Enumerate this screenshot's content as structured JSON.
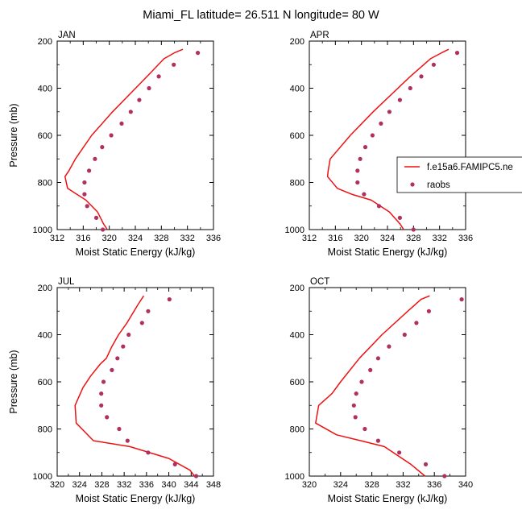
{
  "figure": {
    "title": "Miami_FL  latitude= 26.511 N longitude= 80 W"
  },
  "legend": {
    "model_label": "f.e15a6.FAMIPC5.ne",
    "obs_label": "raobs"
  },
  "colors": {
    "model_line": "#ee1111",
    "obs_marker": "#b03060",
    "axis": "#000000"
  },
  "chart_data": [
    {
      "type": "line",
      "panel": "JAN",
      "xlabel": "Moist Static Energy (kJ/kg)",
      "ylabel": "Pressure (mb)",
      "xlim": [
        312,
        336
      ],
      "ylim": [
        200,
        1000
      ],
      "y_inverted": true,
      "xticks": [
        312,
        316,
        320,
        324,
        328,
        332,
        336
      ],
      "xticks_minor": [
        314,
        318,
        322,
        326,
        330,
        334
      ],
      "yticks": [
        200,
        400,
        600,
        800,
        1000
      ],
      "series": [
        {
          "name": "f.e15a6.FAMIPC5.ne",
          "kind": "line",
          "points": [
            [
              331.3,
              235
            ],
            [
              330.0,
              250
            ],
            [
              328.4,
              275
            ],
            [
              325.8,
              350
            ],
            [
              320.5,
              500
            ],
            [
              317.3,
              600
            ],
            [
              314.8,
              700
            ],
            [
              313.8,
              750
            ],
            [
              313.2,
              775
            ],
            [
              313.6,
              825
            ],
            [
              315.0,
              850
            ],
            [
              316.4,
              875
            ],
            [
              318.2,
              925
            ],
            [
              319.1,
              975
            ],
            [
              319.7,
              1000
            ]
          ]
        },
        {
          "name": "raobs",
          "kind": "scatter",
          "points": [
            [
              333.6,
              250
            ],
            [
              329.9,
              300
            ],
            [
              327.6,
              350
            ],
            [
              326.1,
              400
            ],
            [
              324.6,
              450
            ],
            [
              323.3,
              500
            ],
            [
              321.9,
              550
            ],
            [
              320.3,
              600
            ],
            [
              318.9,
              650
            ],
            [
              317.8,
              700
            ],
            [
              316.9,
              750
            ],
            [
              316.2,
              800
            ],
            [
              316.2,
              850
            ],
            [
              316.6,
              900
            ],
            [
              318.0,
              950
            ],
            [
              319.0,
              1000
            ]
          ]
        }
      ]
    },
    {
      "type": "line",
      "panel": "APR",
      "xlabel": "Moist Static Energy (kJ/kg)",
      "ylabel": "",
      "xlim": [
        312,
        336
      ],
      "ylim": [
        200,
        1000
      ],
      "y_inverted": true,
      "xticks": [
        312,
        316,
        320,
        324,
        328,
        332,
        336
      ],
      "xticks_minor": [
        314,
        318,
        322,
        326,
        330,
        334
      ],
      "yticks": [
        200,
        400,
        600,
        800,
        1000
      ],
      "series": [
        {
          "name": "f.e15a6.FAMIPC5.ne",
          "kind": "line",
          "points": [
            [
              333.4,
              235
            ],
            [
              332.3,
              250
            ],
            [
              330.6,
              275
            ],
            [
              327.5,
              350
            ],
            [
              321.8,
              500
            ],
            [
              318.3,
              600
            ],
            [
              315.2,
              700
            ],
            [
              314.9,
              750
            ],
            [
              314.8,
              775
            ],
            [
              316.3,
              825
            ],
            [
              318.5,
              850
            ],
            [
              321.5,
              875
            ],
            [
              324.3,
              925
            ],
            [
              325.9,
              975
            ],
            [
              326.5,
              1000
            ]
          ]
        },
        {
          "name": "raobs",
          "kind": "scatter",
          "points": [
            [
              334.7,
              250
            ],
            [
              331.1,
              300
            ],
            [
              329.2,
              350
            ],
            [
              327.5,
              400
            ],
            [
              325.9,
              450
            ],
            [
              324.3,
              500
            ],
            [
              323.0,
              550
            ],
            [
              321.7,
              600
            ],
            [
              320.6,
              650
            ],
            [
              319.8,
              700
            ],
            [
              319.4,
              750
            ],
            [
              319.4,
              800
            ],
            [
              320.4,
              850
            ],
            [
              322.7,
              900
            ],
            [
              325.9,
              950
            ],
            [
              328.0,
              1000
            ]
          ]
        }
      ]
    },
    {
      "type": "line",
      "panel": "JUL",
      "xlabel": "Moist Static Energy (kJ/kg)",
      "ylabel": "Pressure (mb)",
      "xlim": [
        320,
        348
      ],
      "ylim": [
        200,
        1000
      ],
      "y_inverted": true,
      "xticks": [
        320,
        324,
        328,
        332,
        336,
        340,
        344,
        348
      ],
      "xticks_minor": [
        322,
        326,
        330,
        334,
        338,
        342,
        346
      ],
      "yticks": [
        200,
        400,
        600,
        800,
        1000
      ],
      "series": [
        {
          "name": "f.e15a6.FAMIPC5.ne",
          "kind": "line",
          "points": [
            [
              335.5,
              235
            ],
            [
              334.4,
              275
            ],
            [
              332.5,
              350
            ],
            [
              331.0,
              400
            ],
            [
              329.8,
              450
            ],
            [
              328.8,
              500
            ],
            [
              327.7,
              525
            ],
            [
              326.0,
              575
            ],
            [
              324.6,
              625
            ],
            [
              323.2,
              700
            ],
            [
              323.4,
              775
            ],
            [
              326.5,
              850
            ],
            [
              333.0,
              875
            ],
            [
              340.0,
              925
            ],
            [
              343.8,
              975
            ],
            [
              344.6,
              1000
            ]
          ]
        },
        {
          "name": "raobs",
          "kind": "scatter",
          "points": [
            [
              340.1,
              250
            ],
            [
              336.3,
              300
            ],
            [
              335.2,
              350
            ],
            [
              332.8,
              400
            ],
            [
              331.8,
              450
            ],
            [
              330.8,
              500
            ],
            [
              329.8,
              550
            ],
            [
              328.3,
              600
            ],
            [
              327.9,
              650
            ],
            [
              327.9,
              700
            ],
            [
              328.9,
              750
            ],
            [
              331.1,
              800
            ],
            [
              332.6,
              850
            ],
            [
              336.3,
              900
            ],
            [
              341.1,
              950
            ],
            [
              344.9,
              1000
            ]
          ]
        }
      ]
    },
    {
      "type": "line",
      "panel": "OCT",
      "xlabel": "Moist Static Energy (kJ/kg)",
      "ylabel": "",
      "xlim": [
        320,
        340
      ],
      "ylim": [
        200,
        1000
      ],
      "y_inverted": true,
      "xticks": [
        320,
        324,
        328,
        332,
        336,
        340
      ],
      "xticks_minor": [
        322,
        326,
        330,
        334,
        338
      ],
      "yticks": [
        200,
        400,
        600,
        800,
        1000
      ],
      "series": [
        {
          "name": "f.e15a6.FAMIPC5.ne",
          "kind": "line",
          "points": [
            [
              335.4,
              235
            ],
            [
              334.3,
              250
            ],
            [
              332.6,
              300
            ],
            [
              329.3,
              400
            ],
            [
              326.4,
              500
            ],
            [
              324.0,
              600
            ],
            [
              322.9,
              650
            ],
            [
              321.2,
              700
            ],
            [
              320.8,
              775
            ],
            [
              323.5,
              825
            ],
            [
              326.6,
              850
            ],
            [
              329.6,
              875
            ],
            [
              333.0,
              950
            ],
            [
              334.8,
              1000
            ]
          ]
        },
        {
          "name": "raobs",
          "kind": "scatter",
          "points": [
            [
              339.5,
              250
            ],
            [
              335.3,
              300
            ],
            [
              333.7,
              350
            ],
            [
              332.2,
              400
            ],
            [
              330.2,
              450
            ],
            [
              328.8,
              500
            ],
            [
              327.8,
              550
            ],
            [
              326.7,
              600
            ],
            [
              326.0,
              650
            ],
            [
              325.7,
              700
            ],
            [
              325.9,
              750
            ],
            [
              327.1,
              800
            ],
            [
              328.8,
              850
            ],
            [
              331.5,
              900
            ],
            [
              334.9,
              950
            ],
            [
              337.3,
              1000
            ]
          ]
        }
      ]
    }
  ]
}
